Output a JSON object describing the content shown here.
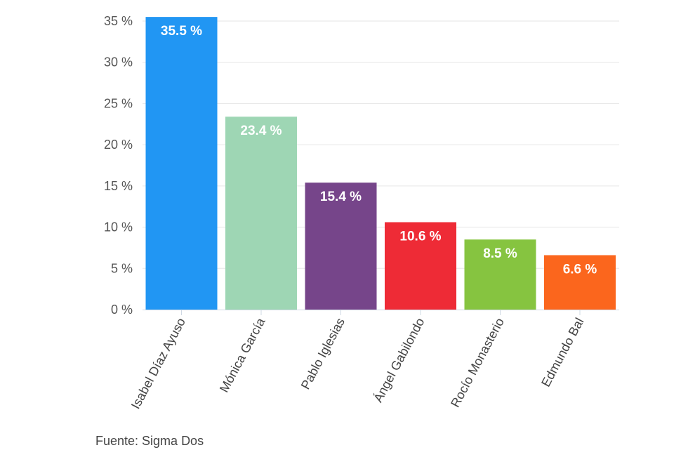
{
  "chart_data": {
    "type": "bar",
    "title": "",
    "xlabel": "",
    "ylabel": "",
    "categories": [
      "Isabel Díaz Ayuso",
      "Mónica García",
      "Pablo Iglesias",
      "Ángel Gabilondo",
      "Rocío Monasterio",
      "Edmundo Bal"
    ],
    "values": [
      35.5,
      23.4,
      15.4,
      10.6,
      8.5,
      6.6
    ],
    "data_labels": [
      "35.5 %",
      "23.4 %",
      "15.4 %",
      "10.6 %",
      "8.5 %",
      "6.6 %"
    ],
    "colors": [
      "#2196f3",
      "#9ed6b4",
      "#76458a",
      "#ee2b36",
      "#86c440",
      "#fb661d"
    ],
    "ylim": [
      0,
      35
    ],
    "yticks": [
      0,
      5,
      10,
      15,
      20,
      25,
      30,
      35
    ],
    "ytick_labels": [
      "0 %",
      "5 %",
      "10 %",
      "15 %",
      "20 %",
      "25 %",
      "30 %",
      "35 %"
    ],
    "grid": true
  },
  "source": "Fuente: Sigma Dos"
}
